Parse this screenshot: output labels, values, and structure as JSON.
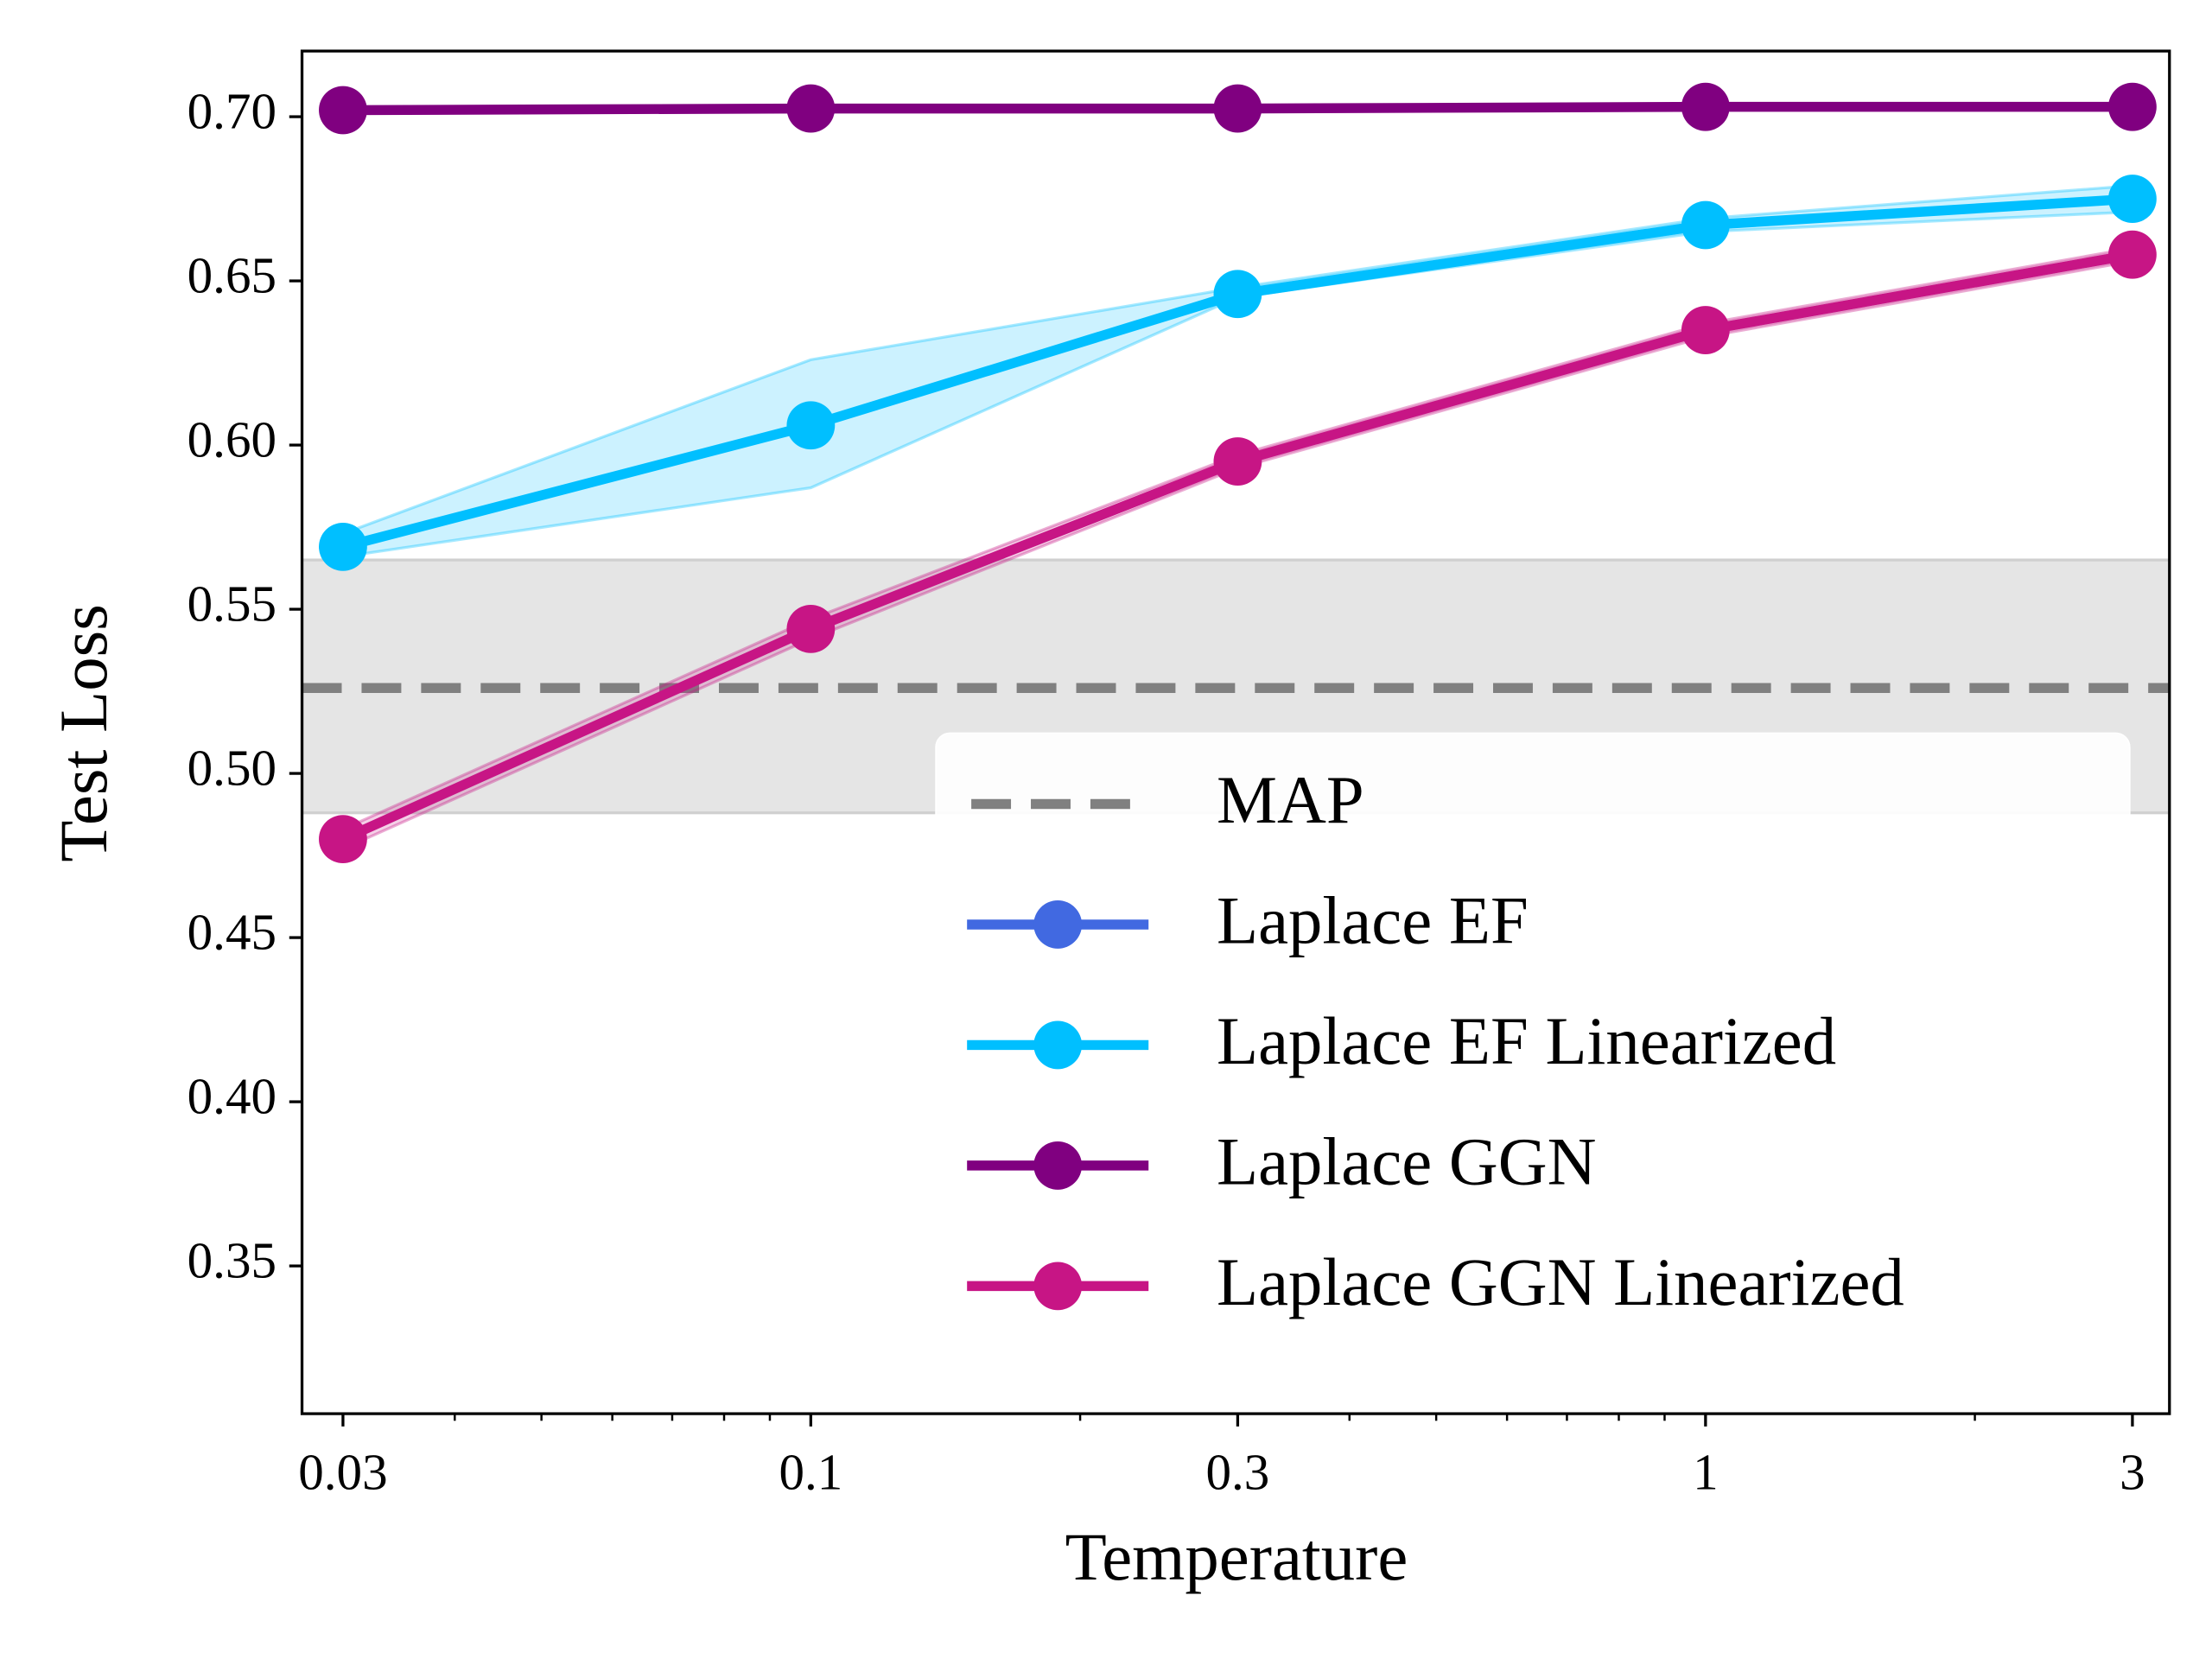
{
  "chart_data": {
    "type": "line",
    "xlabel": "Temperature",
    "ylabel": "Test Loss",
    "x": [
      0.03,
      0.1,
      0.3,
      1,
      3
    ],
    "xscale": "log",
    "xlim": [
      0.027,
      3.3
    ],
    "xticks": [
      0.03,
      0.1,
      0.3,
      1,
      3
    ],
    "xminor_ticks": [
      0.04,
      0.05,
      0.06,
      0.07,
      0.08,
      0.09,
      0.2,
      0.4,
      0.5,
      0.6,
      0.7,
      0.8,
      0.9,
      2
    ],
    "ylim": [
      0.305,
      0.72
    ],
    "yticks": [
      0.35,
      {
        "value": 0.4,
        "label": "0.40"
      },
      0.45,
      {
        "value": 0.5,
        "label": "0.50"
      },
      0.55,
      {
        "value": 0.6,
        "label": "0.60"
      },
      0.65,
      {
        "value": 0.7,
        "label": "0.70"
      }
    ],
    "legend": "lower right",
    "reference": {
      "name": "MAP",
      "color": "#808080",
      "value": 0.526,
      "band": [
        0.488,
        0.565
      ]
    },
    "series": [
      {
        "name": "Laplace EF",
        "color": "#4169e1",
        "values": [
          null,
          null,
          null,
          null,
          null
        ]
      },
      {
        "name": "Laplace EF Linearized",
        "color": "#00bfff",
        "values": [
          0.569,
          0.606,
          0.646,
          0.667,
          0.675
        ],
        "band_lower": [
          0.566,
          0.587,
          0.645,
          0.665,
          0.671
        ],
        "band_upper": [
          0.573,
          0.626,
          0.648,
          0.669,
          0.679
        ]
      },
      {
        "name": "Laplace GGN",
        "color": "#800080",
        "values": [
          0.702,
          0.7025,
          0.7025,
          0.703,
          0.703
        ]
      },
      {
        "name": "Laplace GGN Linearized",
        "color": "#c71585",
        "values": [
          0.48,
          0.544,
          0.595,
          0.635,
          0.658
        ],
        "band_lower": [
          0.477,
          0.541,
          0.593,
          0.633,
          0.656
        ],
        "band_upper": [
          0.483,
          0.547,
          0.597,
          0.637,
          0.66
        ]
      }
    ]
  }
}
